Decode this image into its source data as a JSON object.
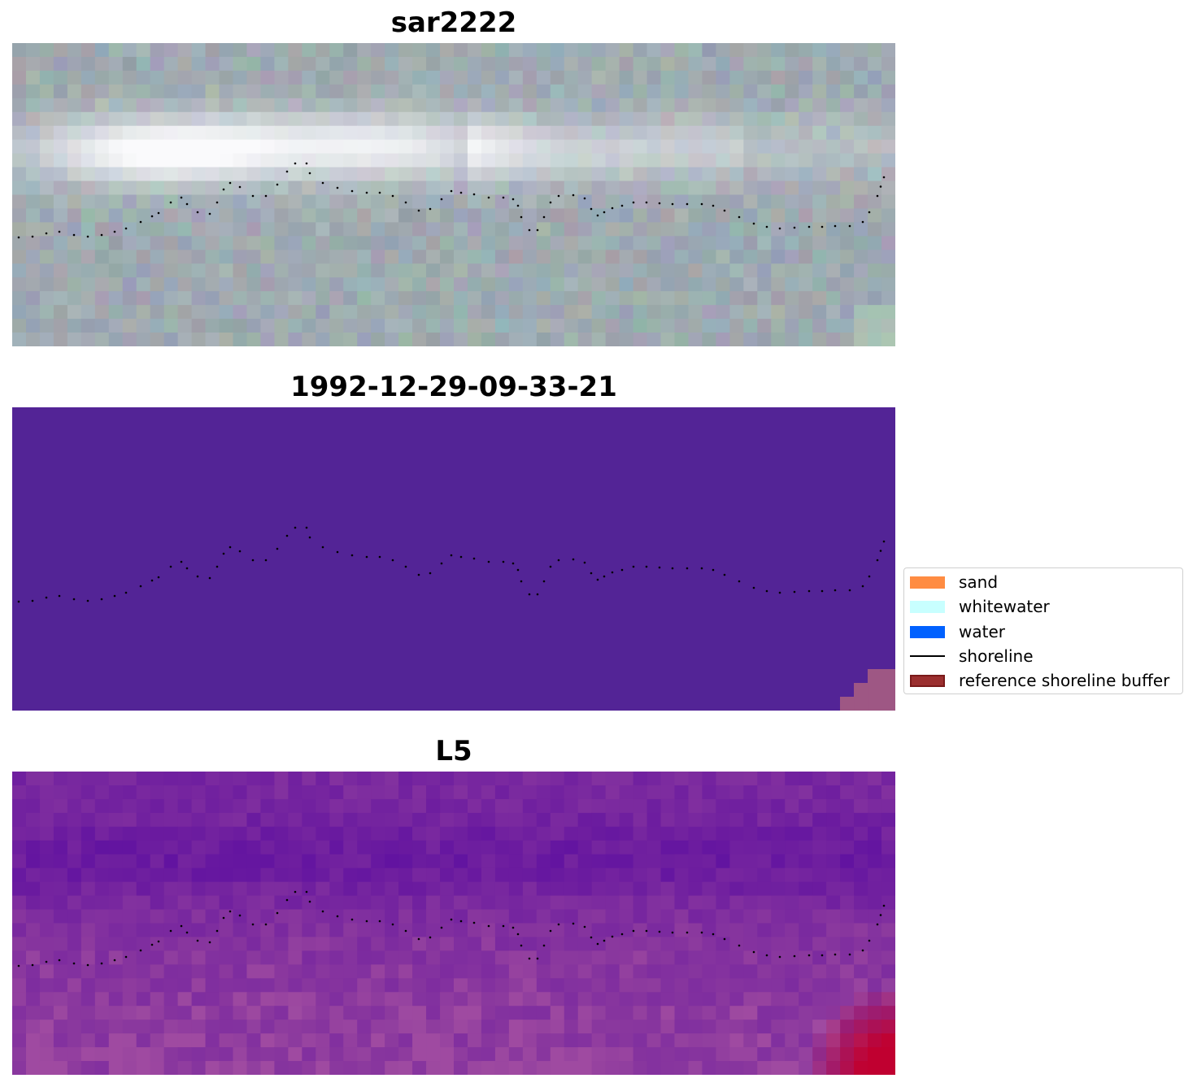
{
  "panels": [
    {
      "title": "sar2222",
      "kind": "rgb"
    },
    {
      "title": "1992-12-29-09-33-21",
      "kind": "classified"
    },
    {
      "title": "L5",
      "kind": "index"
    }
  ],
  "legend": {
    "items": [
      {
        "label": "sand",
        "color": "#FF8C42",
        "type": "patch"
      },
      {
        "label": "whitewater",
        "color": "#C8FFFF",
        "type": "patch"
      },
      {
        "label": "water",
        "color": "#0061FF",
        "type": "patch"
      },
      {
        "label": "shoreline",
        "color": "#000000",
        "type": "line"
      },
      {
        "label": "reference shoreline buffer",
        "color": "#9B2F2F",
        "type": "patch",
        "edge": "#7A1A1A"
      }
    ]
  },
  "colors": {
    "classified_background": "#532496",
    "reference_buffer_overlay": "#9E5784",
    "index_low": "#5A0CA0",
    "index_mid": "#93409E",
    "index_high": "#C00030",
    "shoreline_points": "#000000"
  }
}
